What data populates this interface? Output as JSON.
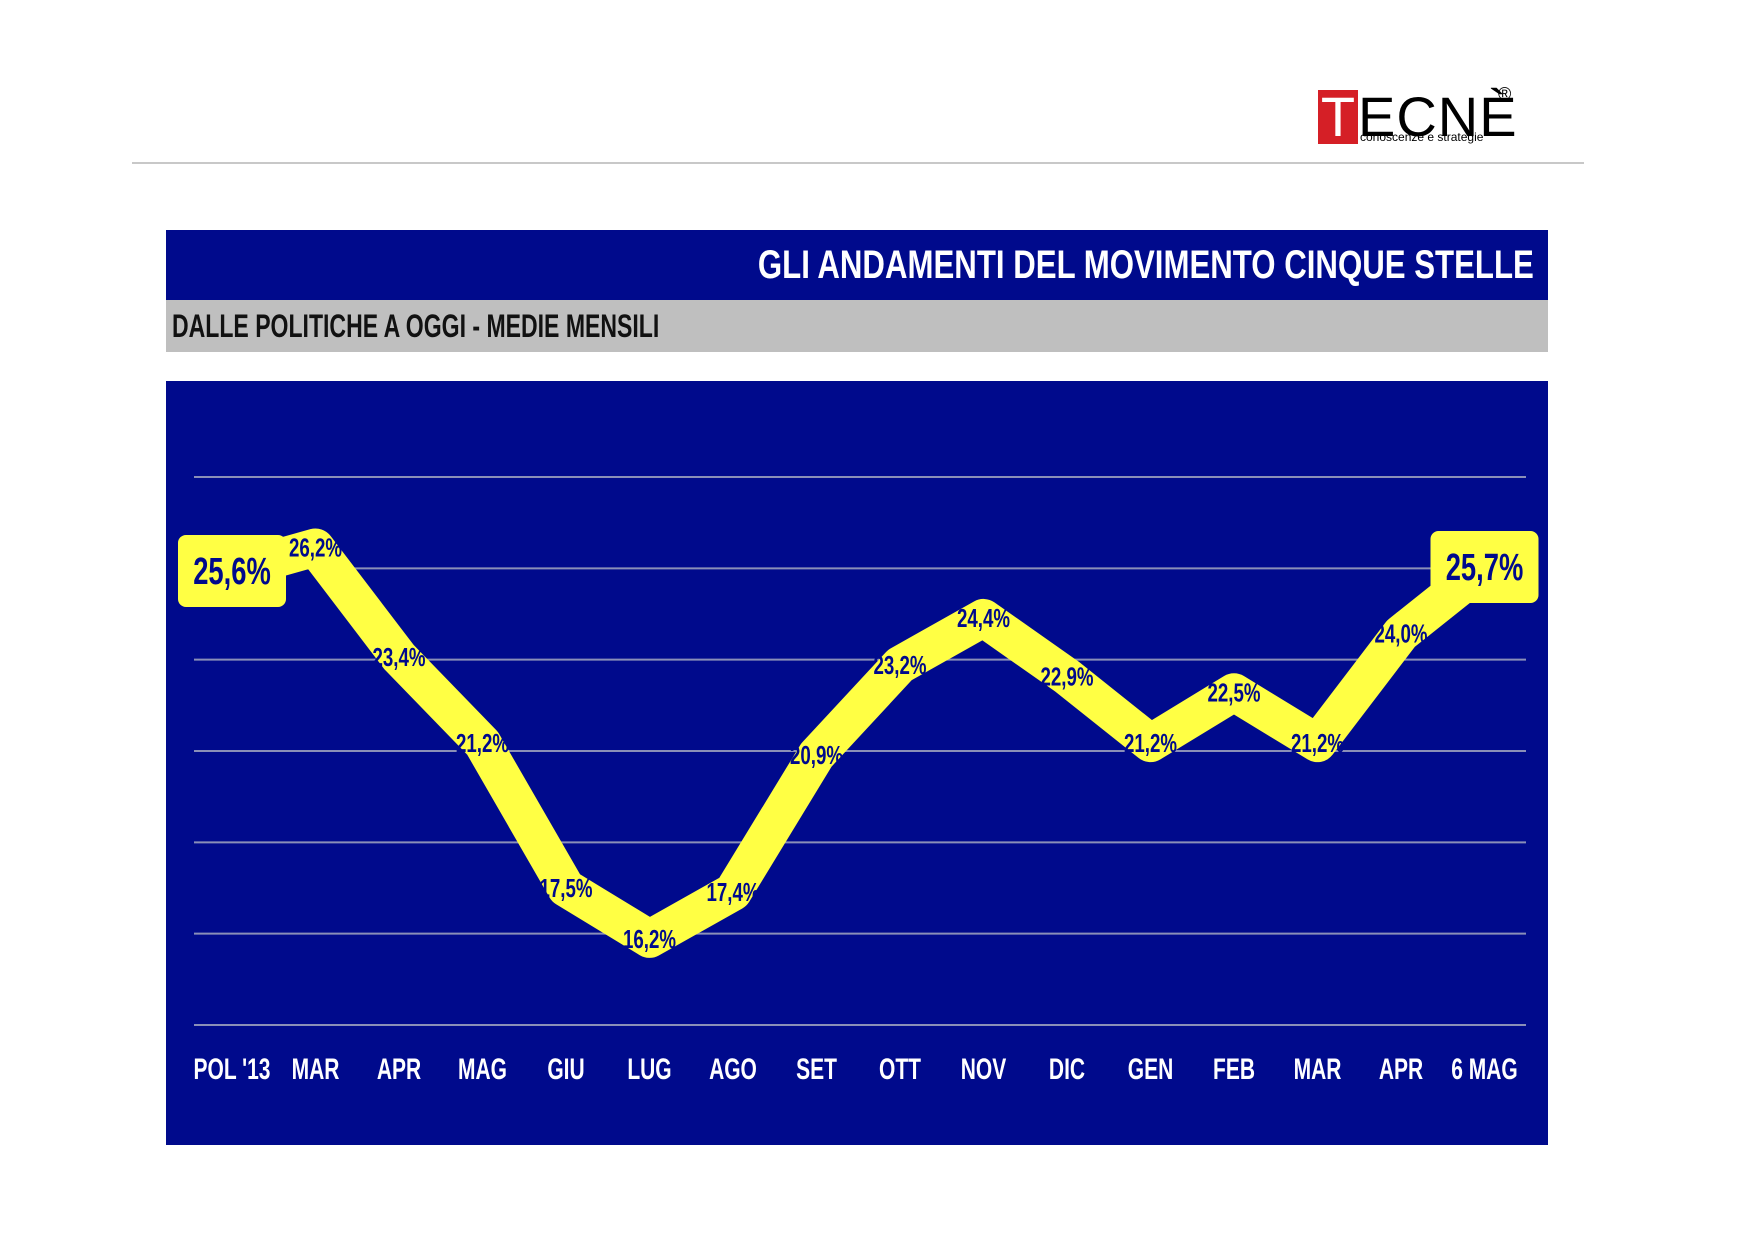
{
  "logo": {
    "first_letter": "T",
    "rest": "ECNÈ",
    "registered": "®",
    "tagline": "conoscenze e strategie"
  },
  "header": {
    "title": "GLI ANDAMENTI DEL MOVIMENTO CINQUE STELLE",
    "subtitle": "DALLE POLITICHE A OGGI - MEDIE MENSILI"
  },
  "colors": {
    "panel": "#000a8c",
    "line": "#ffff44",
    "grid": "#8a8fb8",
    "label": "#000a8c",
    "tick": "#ffffff"
  },
  "chart_data": {
    "type": "line",
    "categories": [
      "POL '13",
      "MAR",
      "APR",
      "MAG",
      "GIU",
      "LUG",
      "AGO",
      "SET",
      "OTT",
      "NOV",
      "DIC",
      "GEN",
      "FEB",
      "MAR",
      "APR",
      "6 MAG"
    ],
    "values": [
      25.6,
      26.2,
      23.4,
      21.2,
      17.5,
      16.2,
      17.4,
      20.9,
      23.2,
      24.4,
      22.9,
      21.2,
      22.5,
      21.2,
      24.0,
      25.7
    ],
    "value_labels": [
      "25,6%",
      "26,2%",
      "23,4%",
      "21,2%",
      "17,5%",
      "16,2%",
      "17,4%",
      "20,9%",
      "23,2%",
      "24,4%",
      "22,9%",
      "21,2%",
      "22,5%",
      "21,2%",
      "24,0%",
      "25,7%"
    ],
    "highlighted": [
      0,
      15
    ],
    "ylim": [
      14,
      28
    ],
    "grid": true,
    "gridlines": 7
  }
}
